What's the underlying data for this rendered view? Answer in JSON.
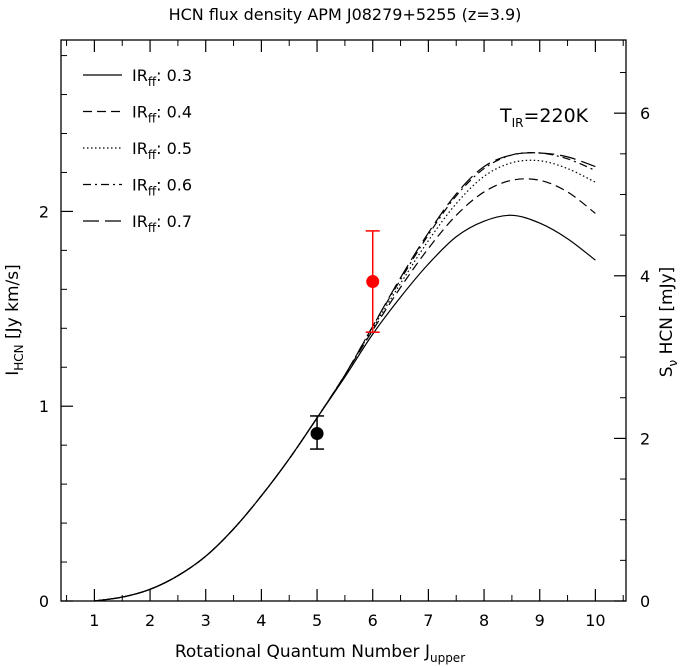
{
  "chart_data": {
    "type": "line",
    "title": "HCN flux density APM J08279+5255 (z=3.9)",
    "xlabel": "Rotational Quantum Number J",
    "xlabel_sub": "upper",
    "ylabel_left": "I",
    "ylabel_left_sub": "HCN",
    "ylabel_left_unit": " [Jy km/s]",
    "ylabel_right_pre": "S",
    "ylabel_right_sub": "ν",
    "ylabel_right_post": " HCN  [mJy]",
    "annotation": {
      "main": "T",
      "sub": "IR",
      "post": "=220K"
    },
    "xlim": [
      0.4,
      10.55
    ],
    "ylim": [
      0,
      2.88
    ],
    "y2lim": [
      0,
      6.9
    ],
    "x_ticks": [
      1,
      2,
      3,
      4,
      5,
      6,
      7,
      8,
      9,
      10
    ],
    "y_ticks": [
      0,
      1,
      2
    ],
    "y2_ticks": [
      0,
      2,
      4,
      6
    ],
    "x": [
      1,
      1.5,
      2,
      2.5,
      3,
      3.5,
      4,
      4.5,
      5,
      5.5,
      6,
      6.5,
      7,
      7.5,
      8,
      8.5,
      9,
      9.5,
      10
    ],
    "series": [
      {
        "name": "IR",
        "sub": "ff",
        "label_value": ": 0.3",
        "dash": "solid",
        "values": [
          0,
          0.02,
          0.06,
          0.13,
          0.23,
          0.37,
          0.54,
          0.73,
          0.94,
          1.15,
          1.37,
          1.56,
          1.73,
          1.87,
          1.95,
          1.98,
          1.94,
          1.86,
          1.75
        ]
      },
      {
        "name": "IR",
        "sub": "ff",
        "label_value": ": 0.4",
        "dash": "dashed",
        "values": [
          0,
          0.02,
          0.06,
          0.13,
          0.23,
          0.37,
          0.54,
          0.73,
          0.94,
          1.16,
          1.39,
          1.61,
          1.81,
          1.98,
          2.1,
          2.16,
          2.16,
          2.1,
          1.99
        ]
      },
      {
        "name": "IR",
        "sub": "ff",
        "label_value": ": 0.5",
        "dash": "dotted",
        "values": [
          0,
          0.02,
          0.06,
          0.13,
          0.23,
          0.37,
          0.54,
          0.73,
          0.94,
          1.16,
          1.4,
          1.63,
          1.85,
          2.04,
          2.18,
          2.25,
          2.26,
          2.22,
          2.15
        ]
      },
      {
        "name": "IR",
        "sub": "ff",
        "label_value": ": 0.6",
        "dash": "dashdot",
        "values": [
          0,
          0.02,
          0.06,
          0.13,
          0.23,
          0.37,
          0.54,
          0.73,
          0.94,
          1.16,
          1.41,
          1.65,
          1.88,
          2.08,
          2.22,
          2.29,
          2.3,
          2.27,
          2.21
        ]
      },
      {
        "name": "IR",
        "sub": "ff",
        "label_value": ": 0.7",
        "dash": "longdash",
        "values": [
          0,
          0.02,
          0.06,
          0.13,
          0.23,
          0.37,
          0.54,
          0.73,
          0.94,
          1.16,
          1.41,
          1.66,
          1.89,
          2.09,
          2.23,
          2.29,
          2.3,
          2.28,
          2.23
        ]
      }
    ],
    "points": [
      {
        "x": 5,
        "y": 0.86,
        "yerr_low": 0.78,
        "yerr_high": 0.95,
        "color": "#000000"
      },
      {
        "x": 6,
        "y": 1.64,
        "yerr_low": 1.38,
        "yerr_high": 1.9,
        "color": "#ff0000"
      }
    ],
    "legend_position": "top-left",
    "grid": false
  }
}
